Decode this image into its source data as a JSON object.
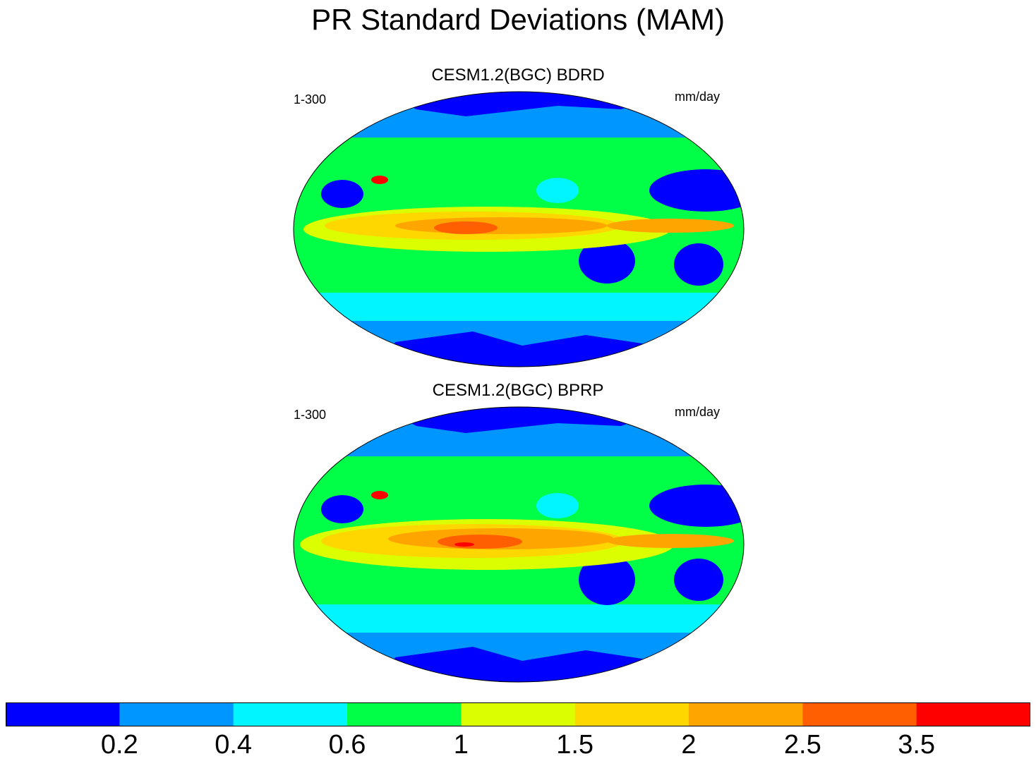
{
  "title": "PR Standard Deviations (MAM)",
  "units": "mm/day",
  "panels": [
    {
      "title": "CESM1.2(BGC) BDRD",
      "period": "1-300",
      "units": "mm/day"
    },
    {
      "title": "CESM1.2(BGC) BPRP",
      "period": "1-300",
      "units": "mm/day"
    }
  ],
  "colorbar": {
    "colors": [
      "#0000ff",
      "#0096ff",
      "#00f5ff",
      "#00ff46",
      "#dcff00",
      "#ffd700",
      "#ffa500",
      "#ff5f00",
      "#ff0000"
    ],
    "levels": [
      "0.2",
      "0.4",
      "0.6",
      "1",
      "1.5",
      "2",
      "2.5",
      "3.5"
    ]
  }
}
